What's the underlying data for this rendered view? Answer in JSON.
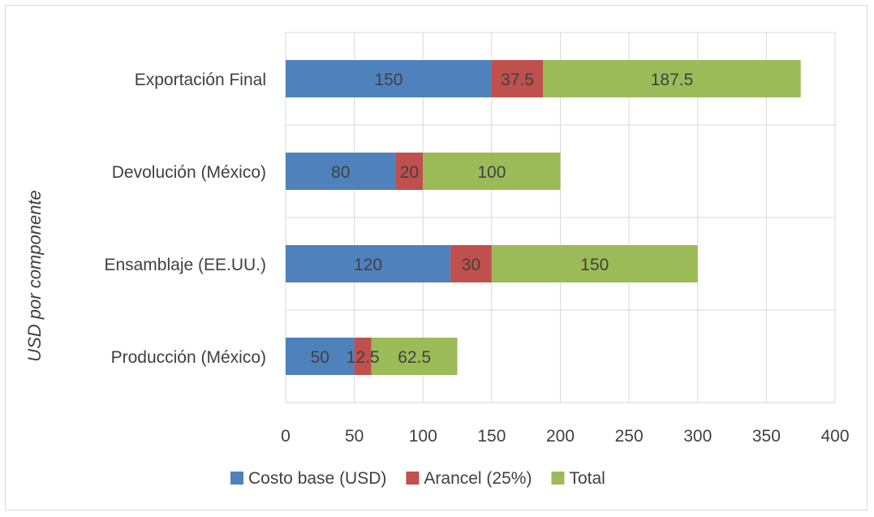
{
  "chart_data": {
    "type": "bar",
    "orientation": "horizontal",
    "stacked": true,
    "categories": [
      "Exportación Final",
      "Devolución (México)",
      "Ensamblaje (EE.UU.)",
      "Producción (México)"
    ],
    "series": [
      {
        "name": "Costo base (USD)",
        "color": "#4f81bd",
        "values": [
          150,
          80,
          120,
          50
        ],
        "labels": [
          "150",
          "80",
          "120",
          "50"
        ]
      },
      {
        "name": "Arancel (25%)",
        "color": "#c0504d",
        "values": [
          37.5,
          20,
          30,
          12.5
        ],
        "labels": [
          "37.5",
          "20",
          "30",
          "12.5"
        ]
      },
      {
        "name": "Total",
        "color": "#9bbb59",
        "values": [
          187.5,
          100,
          150,
          62.5
        ],
        "labels": [
          "187.5",
          "100",
          "150",
          "62.5"
        ]
      }
    ],
    "xlim": [
      0,
      400
    ],
    "xticks": [
      "0",
      "50",
      "100",
      "150",
      "200",
      "250",
      "300",
      "350",
      "400"
    ],
    "ylabel": "USD por componente",
    "grid": true,
    "legend_position": "bottom"
  }
}
